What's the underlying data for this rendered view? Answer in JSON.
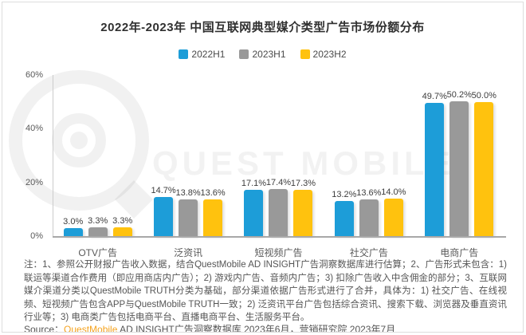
{
  "title": "2022年-2023年 中国互联网典型媒介类型广告市场份额分布",
  "chart_data": {
    "type": "bar",
    "title": "2022年-2023年 中国互联网典型媒介类型广告市场份额分布",
    "categories": [
      "OTV广告",
      "泛资讯",
      "短视频广告",
      "社交广告",
      "电商广告"
    ],
    "series": [
      {
        "name": "2022H1",
        "color": "#1D9DD8",
        "values": [
          3.0,
          14.7,
          17.1,
          13.2,
          49.7
        ]
      },
      {
        "name": "2023H1",
        "color": "#999999",
        "values": [
          3.3,
          13.8,
          17.4,
          13.6,
          50.2
        ]
      },
      {
        "name": "2023H2",
        "color": "#FFC20E",
        "values": [
          3.3,
          13.6,
          17.3,
          14.0,
          50.0
        ]
      }
    ],
    "value_suffix": "%",
    "xlabel": "",
    "ylabel": "",
    "ylim": [
      0,
      60
    ],
    "yticks": [
      0,
      20,
      40,
      60
    ],
    "ytick_suffix": "%",
    "grid": false,
    "legend_position": "top",
    "data_labels": true
  },
  "watermark": {
    "text": "QUEST MOBILE"
  },
  "notes": "注：1、参照公开财报广告收入数据，结合QuestMobile AD INSIGHT广告洞察数据库进行估算；2、广告形式未包含：1) 联运等渠道合作费用（即应用商店内广告）；2) 游戏内广告、音频内广告；3) 扣除广告收入中含佣金的部分；3、互联网媒介渠道分类以QuestMobile TRUTH分类为基础，部分渠道依据广告形式进行了合并，具体为：1) 社交广告、在线视频、短视频广告包含APP与QuestMobile TRUTH一致；2) 泛资讯平台广告包括综合资讯、搜索下载、浏览器及垂直资讯行业等；3) 电商类广告包括电商平台、直播电商平台、生活服务平台。",
  "source": {
    "prefix": "Source：",
    "brand": "QuestMobile",
    "rest": " AD INSIGHT广告洞察数据库 2023年6月，营销研究院 2023年7月"
  }
}
